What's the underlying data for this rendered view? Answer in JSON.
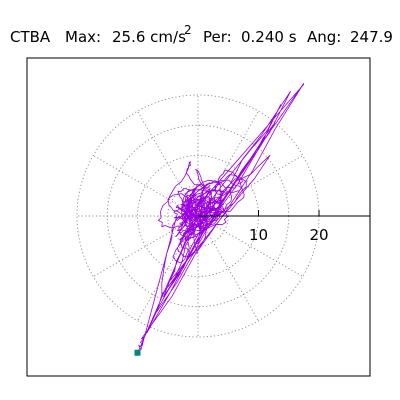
{
  "header": {
    "station": "CTBA",
    "max_label": "Max:",
    "max_value": "25.6 cm/s",
    "max_exponent": "2",
    "per_label": "Per:",
    "per_value": "0.240 s",
    "ang_label": "Ang:",
    "ang_value": "247.9"
  },
  "chart_data": {
    "type": "polar-particle-motion",
    "title": "CTBA  Max: 25.6 cm/s2  Per: 0.240 s  Ang: 247.9",
    "max_amplitude": 25.6,
    "amplitude_unit": "cm/s2",
    "period_s": 0.24,
    "angle_deg": 247.9,
    "radial_axis": {
      "ticks": [
        10,
        20
      ],
      "tick_labels": [
        "10",
        "20"
      ],
      "ring_values": [
        5,
        10,
        15,
        20
      ]
    },
    "spoke_angles_deg": [
      0,
      30,
      60,
      90,
      120,
      150,
      180,
      210,
      240,
      270,
      300,
      330
    ],
    "grid": "dotted",
    "trace_color": "#9900dd",
    "end_marker_color": "#008877",
    "trace": {
      "dominant_direction_deg": 247.9,
      "peak_start": [
        17.5,
        21.8
      ],
      "peak_end": [
        -9.7,
        -22.0
      ],
      "end_marker": [
        -10.0,
        -22.6
      ]
    }
  }
}
